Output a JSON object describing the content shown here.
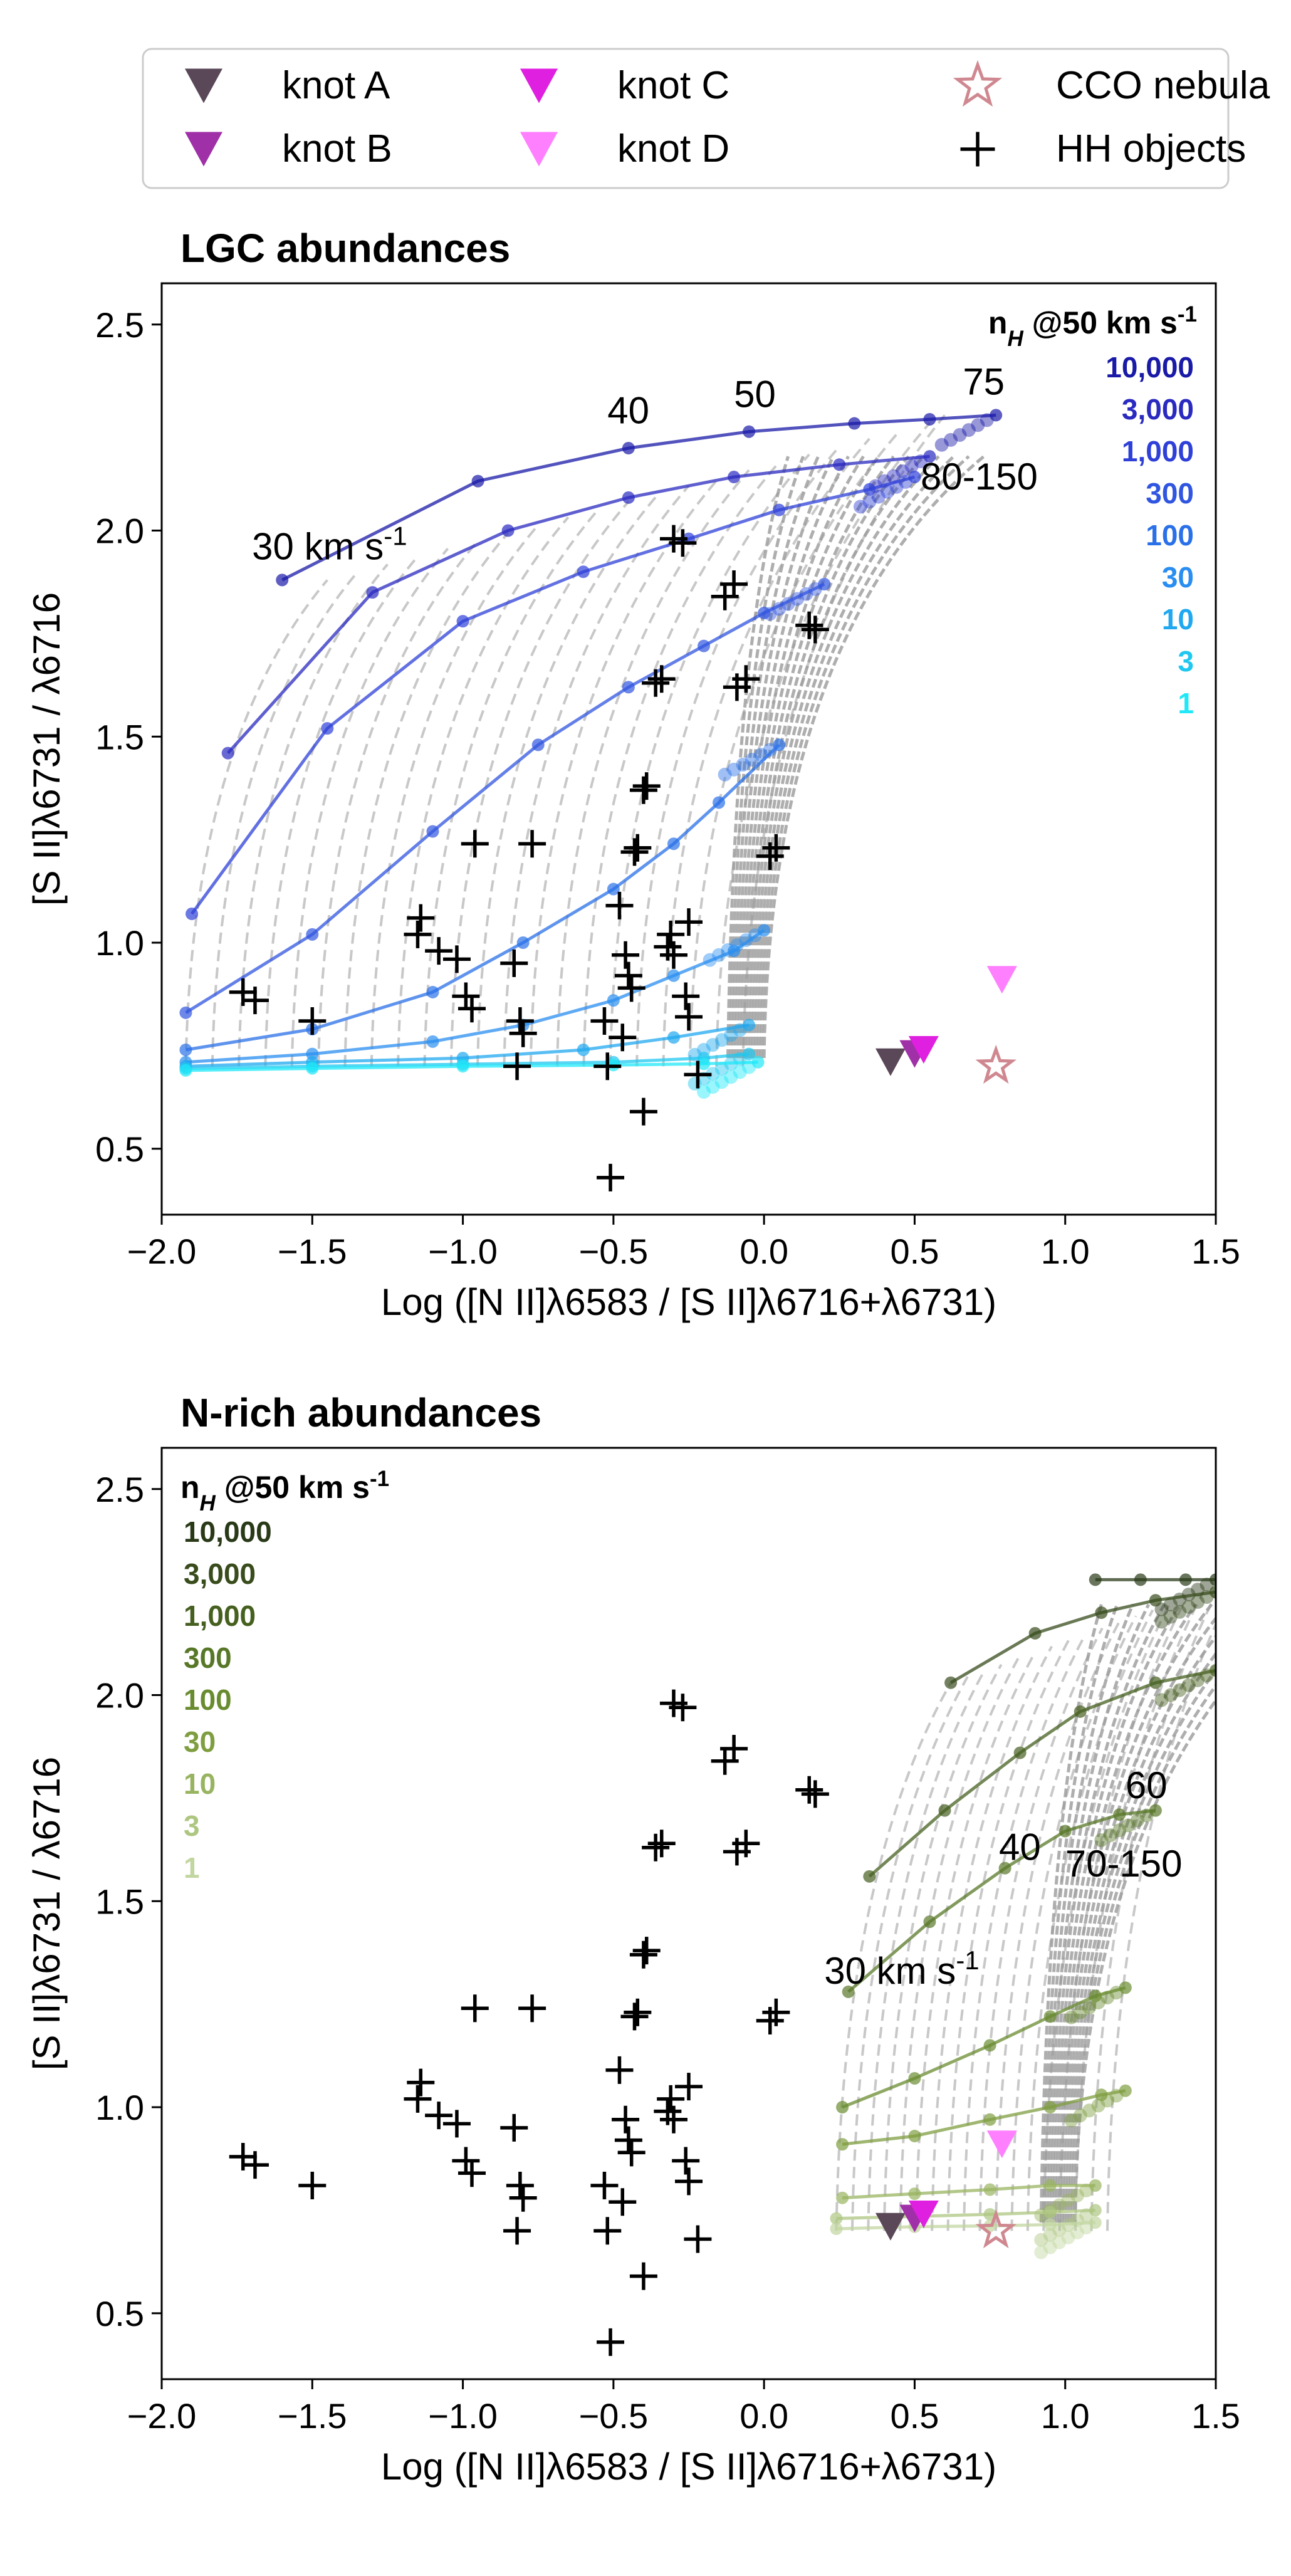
{
  "legend": {
    "items": [
      {
        "label": "knot A",
        "marker": "triangle-down",
        "color": "#5a4858"
      },
      {
        "label": "knot B",
        "marker": "triangle-down",
        "color": "#a030a8"
      },
      {
        "label": "knot C",
        "marker": "triangle-down",
        "color": "#e020e0"
      },
      {
        "label": "knot D",
        "marker": "triangle-down",
        "color": "#ff80ff"
      },
      {
        "label": "CCO nebula",
        "marker": "star",
        "color": "#d08890"
      },
      {
        "label": "HH objects",
        "marker": "plus",
        "color": "#000000"
      }
    ]
  },
  "chart_data": [
    {
      "type": "scatter",
      "title": "LGC abundances",
      "xlabel": "Log ([N II]λ6583 / [S II]λ6716+λ6731)",
      "ylabel": "[S II]λ6731 / λ6716",
      "xlim": [
        -2.0,
        1.5
      ],
      "ylim": [
        0.34,
        2.6
      ],
      "xticks": [
        "−2.0",
        "−1.5",
        "−1.0",
        "−0.5",
        "0.0",
        "0.5",
        "1.0",
        "1.5"
      ],
      "yticks": [
        "0.5",
        "1.0",
        "1.5",
        "2.0",
        "2.5"
      ],
      "density_legend_title": "n_H @50 km s^-1",
      "density_legend_placement": "top-right",
      "densities": [
        {
          "label": "10,000",
          "color": "#1a1aa8"
        },
        {
          "label": "3,000",
          "color": "#2a2ac0"
        },
        {
          "label": "1,000",
          "color": "#2e40d8"
        },
        {
          "label": "300",
          "color": "#3055e0"
        },
        {
          "label": "100",
          "color": "#2a70e8"
        },
        {
          "label": "30",
          "color": "#2a8ef0"
        },
        {
          "label": "10",
          "color": "#20a8f0"
        },
        {
          "label": "3",
          "color": "#20c8f0"
        },
        {
          "label": "1",
          "color": "#20e8f8"
        }
      ],
      "velocity_labels": [
        "30 km s^-1",
        "40",
        "50",
        "75",
        "80-150"
      ],
      "model_tracks": [
        {
          "density": "10,000",
          "x": [
            -1.6,
            -0.95,
            -0.45,
            -0.05,
            0.3,
            0.55,
            0.77
          ],
          "y": [
            1.88,
            2.12,
            2.2,
            2.24,
            2.26,
            2.27,
            2.28
          ]
        },
        {
          "density": "3,000",
          "x": [
            -1.78,
            -1.3,
            -0.85,
            -0.45,
            -0.1,
            0.25,
            0.55
          ],
          "y": [
            1.46,
            1.85,
            2.0,
            2.08,
            2.13,
            2.16,
            2.18
          ]
        },
        {
          "density": "1,000",
          "x": [
            -1.9,
            -1.45,
            -1.0,
            -0.6,
            -0.25,
            0.05,
            0.35,
            0.5
          ],
          "y": [
            1.07,
            1.52,
            1.78,
            1.9,
            1.98,
            2.05,
            2.1,
            2.13
          ]
        },
        {
          "density": "300",
          "x": [
            -1.92,
            -1.5,
            -1.1,
            -0.75,
            -0.45,
            -0.2,
            0.0,
            0.2
          ],
          "y": [
            0.83,
            1.02,
            1.27,
            1.48,
            1.62,
            1.72,
            1.8,
            1.87
          ]
        },
        {
          "density": "100",
          "x": [
            -1.92,
            -1.5,
            -1.1,
            -0.8,
            -0.5,
            -0.3,
            -0.15,
            0.05
          ],
          "y": [
            0.74,
            0.79,
            0.88,
            1.0,
            1.13,
            1.24,
            1.34,
            1.48
          ]
        },
        {
          "density": "30",
          "x": [
            -1.92,
            -1.5,
            -1.1,
            -0.8,
            -0.5,
            -0.3,
            -0.1,
            0.0
          ],
          "y": [
            0.71,
            0.73,
            0.76,
            0.8,
            0.86,
            0.92,
            0.98,
            1.03
          ]
        },
        {
          "density": "10",
          "x": [
            -1.92,
            -1.5,
            -1.0,
            -0.6,
            -0.3,
            -0.05
          ],
          "y": [
            0.7,
            0.71,
            0.72,
            0.74,
            0.77,
            0.8
          ]
        },
        {
          "density": "3",
          "x": [
            -1.92,
            -1.5,
            -1.0,
            -0.5,
            -0.2,
            -0.05
          ],
          "y": [
            0.695,
            0.7,
            0.705,
            0.71,
            0.72,
            0.73
          ]
        },
        {
          "density": "1",
          "x": [
            -1.92,
            -1.5,
            -1.0,
            -0.5,
            -0.2,
            -0.02
          ],
          "y": [
            0.69,
            0.695,
            0.7,
            0.703,
            0.706,
            0.71
          ]
        }
      ],
      "hh_objects": [
        [
          -1.73,
          0.88
        ],
        [
          -1.69,
          0.86
        ],
        [
          -1.5,
          0.81
        ],
        [
          -1.15,
          1.02
        ],
        [
          -1.14,
          1.06
        ],
        [
          -1.08,
          0.98
        ],
        [
          -1.02,
          0.96
        ],
        [
          -0.99,
          0.87
        ],
        [
          -0.97,
          0.84
        ],
        [
          -0.96,
          1.24
        ],
        [
          -0.83,
          0.95
        ],
        [
          -0.81,
          0.81
        ],
        [
          -0.8,
          0.78
        ],
        [
          -0.82,
          0.7
        ],
        [
          -0.77,
          1.24
        ],
        [
          -0.53,
          0.81
        ],
        [
          -0.52,
          0.7
        ],
        [
          -0.51,
          0.43
        ],
        [
          -0.48,
          1.09
        ],
        [
          -0.47,
          0.77
        ],
        [
          -0.46,
          0.97
        ],
        [
          -0.45,
          0.92
        ],
        [
          -0.44,
          0.89
        ],
        [
          -0.43,
          1.22
        ],
        [
          -0.42,
          1.23
        ],
        [
          -0.4,
          1.37
        ],
        [
          -0.39,
          1.38
        ],
        [
          -0.4,
          0.59
        ],
        [
          -0.36,
          1.63
        ],
        [
          -0.34,
          1.64
        ],
        [
          -0.32,
          0.99
        ],
        [
          -0.31,
          1.02
        ],
        [
          -0.3,
          0.97
        ],
        [
          -0.3,
          1.98
        ],
        [
          -0.27,
          1.97
        ],
        [
          -0.26,
          0.87
        ],
        [
          -0.25,
          1.05
        ],
        [
          -0.25,
          0.82
        ],
        [
          -0.22,
          0.68
        ],
        [
          -0.13,
          1.84
        ],
        [
          -0.1,
          1.87
        ],
        [
          -0.09,
          1.62
        ],
        [
          -0.06,
          1.64
        ],
        [
          0.02,
          1.21
        ],
        [
          0.04,
          1.23
        ],
        [
          0.15,
          1.77
        ],
        [
          0.17,
          1.76
        ]
      ],
      "knots": [
        {
          "name": "knot A",
          "x": 0.42,
          "y": 0.71
        },
        {
          "name": "knot B",
          "x": 0.5,
          "y": 0.73
        },
        {
          "name": "knot C",
          "x": 0.53,
          "y": 0.74
        },
        {
          "name": "knot D",
          "x": 0.79,
          "y": 0.91
        }
      ],
      "cco_nebula": {
        "x": 0.77,
        "y": 0.7
      }
    },
    {
      "type": "scatter",
      "title": "N-rich abundances",
      "xlabel": "Log ([N II]λ6583 / [S II]λ6716+λ6731)",
      "ylabel": "[S II]λ6731 / λ6716",
      "xlim": [
        -2.0,
        1.5
      ],
      "ylim": [
        0.34,
        2.6
      ],
      "xticks": [
        "−2.0",
        "−1.5",
        "−1.0",
        "−0.5",
        "0.0",
        "0.5",
        "1.0",
        "1.5"
      ],
      "yticks": [
        "0.5",
        "1.0",
        "1.5",
        "2.0",
        "2.5"
      ],
      "density_legend_title": "n_H @50 km s^-1",
      "density_legend_placement": "top-left",
      "densities": [
        {
          "label": "10,000",
          "color": "#2a3a18"
        },
        {
          "label": "3,000",
          "color": "#384c1c"
        },
        {
          "label": "1,000",
          "color": "#466020"
        },
        {
          "label": "300",
          "color": "#587828"
        },
        {
          "label": "100",
          "color": "#6a8c30"
        },
        {
          "label": "30",
          "color": "#7f9e40"
        },
        {
          "label": "10",
          "color": "#98b460"
        },
        {
          "label": "3",
          "color": "#adc680"
        },
        {
          "label": "1",
          "color": "#c2d6a0"
        }
      ],
      "velocity_labels": [
        "30 km s^-1",
        "40",
        "60",
        "70-150"
      ],
      "model_tracks": [
        {
          "density": "10,000",
          "x": [
            1.1,
            1.25,
            1.4,
            1.5
          ],
          "y": [
            2.28,
            2.28,
            2.28,
            2.28
          ]
        },
        {
          "density": "3,000",
          "x": [
            0.62,
            0.9,
            1.12,
            1.3,
            1.5
          ],
          "y": [
            2.03,
            2.15,
            2.2,
            2.23,
            2.25
          ]
        },
        {
          "density": "1,000",
          "x": [
            0.35,
            0.6,
            0.85,
            1.05,
            1.3,
            1.5
          ],
          "y": [
            1.56,
            1.72,
            1.86,
            1.96,
            2.03,
            2.06
          ]
        },
        {
          "density": "300",
          "x": [
            0.28,
            0.55,
            0.8,
            1.0,
            1.18,
            1.3
          ],
          "y": [
            1.28,
            1.45,
            1.58,
            1.67,
            1.71,
            1.72
          ]
        },
        {
          "density": "100",
          "x": [
            0.26,
            0.5,
            0.75,
            0.95,
            1.1,
            1.2
          ],
          "y": [
            1.0,
            1.07,
            1.15,
            1.22,
            1.27,
            1.29
          ]
        },
        {
          "density": "30",
          "x": [
            0.26,
            0.5,
            0.75,
            0.95,
            1.12,
            1.2
          ],
          "y": [
            0.91,
            0.93,
            0.97,
            1.0,
            1.03,
            1.04
          ]
        },
        {
          "density": "10",
          "x": [
            0.26,
            0.5,
            0.75,
            0.95,
            1.1
          ],
          "y": [
            0.78,
            0.79,
            0.8,
            0.81,
            0.81
          ]
        },
        {
          "density": "3",
          "x": [
            0.24,
            0.5,
            0.75,
            0.95,
            1.1
          ],
          "y": [
            0.73,
            0.735,
            0.74,
            0.745,
            0.75
          ]
        },
        {
          "density": "1",
          "x": [
            0.24,
            0.5,
            0.75,
            0.95,
            1.1
          ],
          "y": [
            0.705,
            0.71,
            0.712,
            0.715,
            0.72
          ]
        }
      ],
      "hh_objects": [
        [
          -1.73,
          0.88
        ],
        [
          -1.69,
          0.86
        ],
        [
          -1.5,
          0.81
        ],
        [
          -1.15,
          1.02
        ],
        [
          -1.14,
          1.06
        ],
        [
          -1.08,
          0.98
        ],
        [
          -1.02,
          0.96
        ],
        [
          -0.99,
          0.87
        ],
        [
          -0.97,
          0.84
        ],
        [
          -0.96,
          1.24
        ],
        [
          -0.83,
          0.95
        ],
        [
          -0.81,
          0.81
        ],
        [
          -0.8,
          0.78
        ],
        [
          -0.82,
          0.7
        ],
        [
          -0.77,
          1.24
        ],
        [
          -0.53,
          0.81
        ],
        [
          -0.52,
          0.7
        ],
        [
          -0.51,
          0.43
        ],
        [
          -0.48,
          1.09
        ],
        [
          -0.47,
          0.77
        ],
        [
          -0.46,
          0.97
        ],
        [
          -0.45,
          0.92
        ],
        [
          -0.44,
          0.89
        ],
        [
          -0.43,
          1.22
        ],
        [
          -0.42,
          1.23
        ],
        [
          -0.4,
          1.37
        ],
        [
          -0.39,
          1.38
        ],
        [
          -0.4,
          0.59
        ],
        [
          -0.36,
          1.63
        ],
        [
          -0.34,
          1.64
        ],
        [
          -0.32,
          0.99
        ],
        [
          -0.31,
          1.02
        ],
        [
          -0.3,
          0.97
        ],
        [
          -0.3,
          1.98
        ],
        [
          -0.27,
          1.97
        ],
        [
          -0.26,
          0.87
        ],
        [
          -0.25,
          1.05
        ],
        [
          -0.25,
          0.82
        ],
        [
          -0.22,
          0.68
        ],
        [
          -0.13,
          1.84
        ],
        [
          -0.1,
          1.87
        ],
        [
          -0.09,
          1.62
        ],
        [
          -0.06,
          1.64
        ],
        [
          0.02,
          1.21
        ],
        [
          0.04,
          1.23
        ],
        [
          0.15,
          1.77
        ],
        [
          0.17,
          1.76
        ]
      ],
      "knots": [
        {
          "name": "knot A",
          "x": 0.42,
          "y": 0.71
        },
        {
          "name": "knot B",
          "x": 0.5,
          "y": 0.73
        },
        {
          "name": "knot C",
          "x": 0.53,
          "y": 0.74
        },
        {
          "name": "knot D",
          "x": 0.79,
          "y": 0.91
        }
      ],
      "cco_nebula": {
        "x": 0.77,
        "y": 0.7
      }
    }
  ]
}
